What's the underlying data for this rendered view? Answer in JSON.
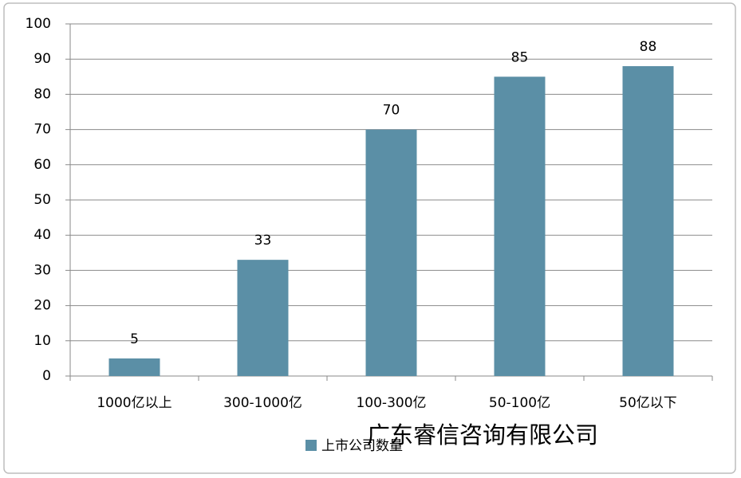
{
  "chart_data": {
    "type": "bar",
    "categories": [
      "1000亿以上",
      "300-1000亿",
      "100-300亿",
      "50-100亿",
      "50亿以下"
    ],
    "series": [
      {
        "name": "上市公司数量",
        "color": "#5b8fa6",
        "values": [
          5,
          33,
          70,
          85,
          88
        ]
      }
    ],
    "ylim": [
      0,
      100
    ],
    "yticks": [
      0,
      10,
      20,
      30,
      40,
      50,
      60,
      70,
      80,
      90,
      100
    ],
    "grid": true,
    "legend": "bottom",
    "annotation": "广东睿信咨询有限公司"
  }
}
